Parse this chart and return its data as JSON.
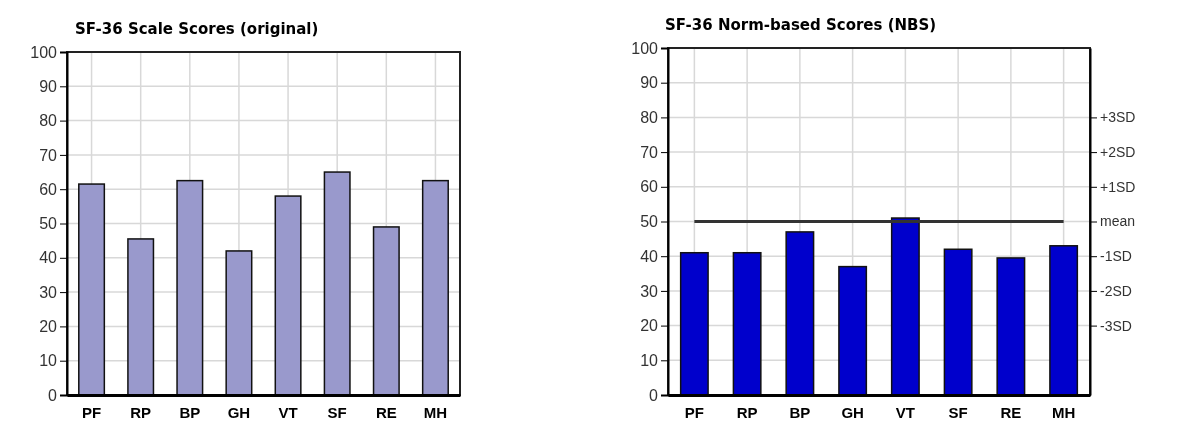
{
  "chart_data": [
    {
      "type": "bar",
      "title": "SF-36 Scale Scores (original)",
      "categories": [
        "PF",
        "RP",
        "BP",
        "GH",
        "VT",
        "SF",
        "RE",
        "MH"
      ],
      "values": [
        61.5,
        45.5,
        62.5,
        42,
        58,
        65,
        49,
        62.5
      ],
      "color": "#9999cc",
      "ylim": [
        0,
        100
      ],
      "yticks": [
        0,
        10,
        20,
        30,
        40,
        50,
        60,
        70,
        80,
        90,
        100
      ],
      "grid": true
    },
    {
      "type": "bar",
      "title": "SF-36 Norm-based Scores (NBS)",
      "categories": [
        "PF",
        "RP",
        "BP",
        "GH",
        "VT",
        "SF",
        "RE",
        "MH"
      ],
      "values": [
        41,
        41,
        47,
        37,
        51,
        42,
        39.5,
        43
      ],
      "color": "#0000cc",
      "ylim": [
        0,
        100
      ],
      "yticks": [
        0,
        10,
        20,
        30,
        40,
        50,
        60,
        70,
        80,
        90,
        100
      ],
      "y2lim": [
        -5,
        5
      ],
      "y2ticks": [
        {
          "value": -3,
          "label": "-3SD"
        },
        {
          "value": -2,
          "label": "-2SD"
        },
        {
          "value": -1,
          "label": "-1SD"
        },
        {
          "value": 0,
          "label": "mean"
        },
        {
          "value": 1,
          "label": "+1SD"
        },
        {
          "value": 2,
          "label": "+2SD"
        },
        {
          "value": 3,
          "label": "+3SD"
        }
      ],
      "ref_lines": [
        {
          "axis": "y",
          "value": 50,
          "color": "#333333"
        }
      ],
      "grid": true
    }
  ]
}
